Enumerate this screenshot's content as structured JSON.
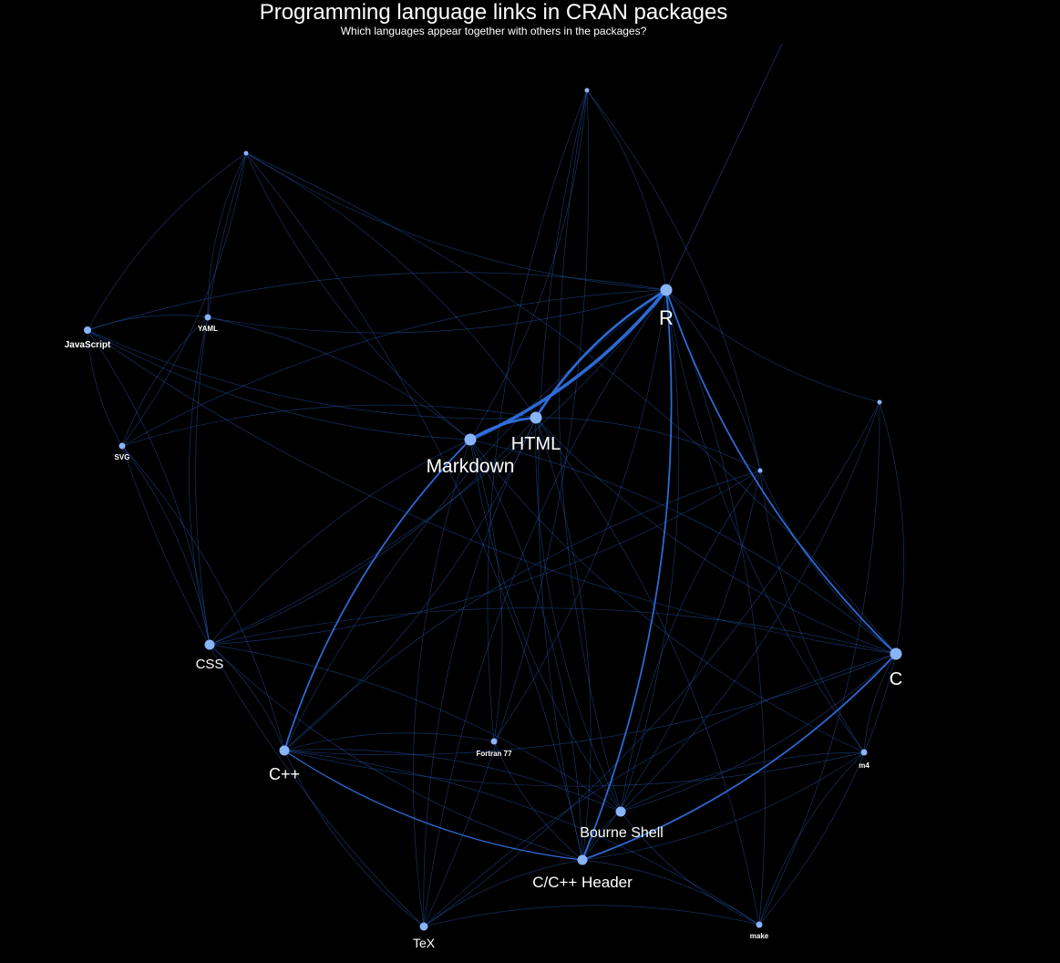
{
  "title": "Programming language links in CRAN packages",
  "subtitle": "Which languages appear together with others in the packages?",
  "colors": {
    "background": "#000000",
    "node": "#8ab4f8",
    "edge": "#2f6fde",
    "label": "#ffffff"
  },
  "nodes": [
    {
      "id": "R",
      "label": "R",
      "degree": "high"
    },
    {
      "id": "HTML",
      "label": "HTML",
      "degree": "high"
    },
    {
      "id": "Markdown",
      "label": "Markdown",
      "degree": "high"
    },
    {
      "id": "C",
      "label": "C",
      "degree": "high"
    },
    {
      "id": "CSS",
      "label": "CSS",
      "degree": "medium"
    },
    {
      "id": "C++",
      "label": "C++",
      "degree": "medium"
    },
    {
      "id": "Bourne Shell",
      "label": "Bourne Shell",
      "degree": "medium"
    },
    {
      "id": "C/C++ Header",
      "label": "C/C++ Header",
      "degree": "medium"
    },
    {
      "id": "TeX",
      "label": "TeX",
      "degree": "low"
    },
    {
      "id": "JavaScript",
      "label": "JavaScript",
      "degree": "low"
    },
    {
      "id": "YAML",
      "label": "YAML",
      "degree": "low"
    },
    {
      "id": "SVG",
      "label": "SVG",
      "degree": "low"
    },
    {
      "id": "Fortran 77",
      "label": "Fortran 77",
      "degree": "low"
    },
    {
      "id": "m4",
      "label": "m4",
      "degree": "low"
    },
    {
      "id": "make",
      "label": "make",
      "degree": "low"
    },
    {
      "id": "u1",
      "label": "",
      "degree": "low"
    },
    {
      "id": "u2",
      "label": "",
      "degree": "low"
    },
    {
      "id": "u3",
      "label": "",
      "degree": "low"
    },
    {
      "id": "u4",
      "label": "",
      "degree": "low"
    }
  ],
  "edges": [
    {
      "source": "R",
      "target": "Markdown",
      "weight": 4
    },
    {
      "source": "R",
      "target": "HTML",
      "weight": 3
    },
    {
      "source": "Markdown",
      "target": "HTML",
      "weight": 3
    },
    {
      "source": "R",
      "target": "C",
      "weight": 2
    },
    {
      "source": "R",
      "target": "C/C++ Header",
      "weight": 2
    },
    {
      "source": "Markdown",
      "target": "C++",
      "weight": 2
    },
    {
      "source": "C",
      "target": "C/C++ Header",
      "weight": 2
    },
    {
      "source": "C++",
      "target": "C/C++ Header",
      "weight": 1.5
    },
    {
      "source": "R",
      "target": "CSS",
      "weight": 1
    },
    {
      "source": "R",
      "target": "C++",
      "weight": 1
    },
    {
      "source": "R",
      "target": "Bourne Shell",
      "weight": 1
    },
    {
      "source": "R",
      "target": "JavaScript",
      "weight": 1
    },
    {
      "source": "R",
      "target": "YAML",
      "weight": 1
    },
    {
      "source": "R",
      "target": "SVG",
      "weight": 1
    },
    {
      "source": "R",
      "target": "Fortran 77",
      "weight": 1
    },
    {
      "source": "R",
      "target": "m4",
      "weight": 1
    },
    {
      "source": "R",
      "target": "make",
      "weight": 1
    },
    {
      "source": "R",
      "target": "TeX",
      "weight": 1
    },
    {
      "source": "R",
      "target": "u1",
      "weight": 1
    },
    {
      "source": "R",
      "target": "u2",
      "weight": 1
    },
    {
      "source": "R",
      "target": "u3",
      "weight": 1
    },
    {
      "source": "R",
      "target": "u4",
      "weight": 1
    },
    {
      "source": "HTML",
      "target": "CSS",
      "weight": 1
    },
    {
      "source": "HTML",
      "target": "C",
      "weight": 1
    },
    {
      "source": "HTML",
      "target": "C++",
      "weight": 1
    },
    {
      "source": "HTML",
      "target": "Bourne Shell",
      "weight": 1
    },
    {
      "source": "HTML",
      "target": "C/C++ Header",
      "weight": 1
    },
    {
      "source": "HTML",
      "target": "TeX",
      "weight": 1
    },
    {
      "source": "HTML",
      "target": "JavaScript",
      "weight": 1
    },
    {
      "source": "HTML",
      "target": "SVG",
      "weight": 1
    },
    {
      "source": "HTML",
      "target": "make",
      "weight": 1
    },
    {
      "source": "HTML",
      "target": "u1",
      "weight": 1
    },
    {
      "source": "HTML",
      "target": "u3",
      "weight": 1
    },
    {
      "source": "Markdown",
      "target": "CSS",
      "weight": 1
    },
    {
      "source": "Markdown",
      "target": "C",
      "weight": 1
    },
    {
      "source": "Markdown",
      "target": "Bourne Shell",
      "weight": 1
    },
    {
      "source": "Markdown",
      "target": "C/C++ Header",
      "weight": 1
    },
    {
      "source": "Markdown",
      "target": "TeX",
      "weight": 1
    },
    {
      "source": "Markdown",
      "target": "JavaScript",
      "weight": 1
    },
    {
      "source": "Markdown",
      "target": "YAML",
      "weight": 1
    },
    {
      "source": "Markdown",
      "target": "u1",
      "weight": 1
    },
    {
      "source": "Markdown",
      "target": "u2",
      "weight": 1
    },
    {
      "source": "Markdown",
      "target": "Fortran 77",
      "weight": 1
    },
    {
      "source": "Markdown",
      "target": "m4",
      "weight": 1
    },
    {
      "source": "C",
      "target": "C++",
      "weight": 1
    },
    {
      "source": "C",
      "target": "CSS",
      "weight": 1
    },
    {
      "source": "C",
      "target": "Bourne Shell",
      "weight": 1
    },
    {
      "source": "C",
      "target": "m4",
      "weight": 1
    },
    {
      "source": "C",
      "target": "make",
      "weight": 1
    },
    {
      "source": "C",
      "target": "TeX",
      "weight": 1
    },
    {
      "source": "C",
      "target": "JavaScript",
      "weight": 1
    },
    {
      "source": "C",
      "target": "u1",
      "weight": 1
    },
    {
      "source": "C",
      "target": "u3",
      "weight": 1
    },
    {
      "source": "C",
      "target": "u4",
      "weight": 1
    },
    {
      "source": "CSS",
      "target": "C++",
      "weight": 1
    },
    {
      "source": "CSS",
      "target": "C/C++ Header",
      "weight": 1
    },
    {
      "source": "CSS",
      "target": "Bourne Shell",
      "weight": 1
    },
    {
      "source": "CSS",
      "target": "JavaScript",
      "weight": 1
    },
    {
      "source": "CSS",
      "target": "YAML",
      "weight": 1
    },
    {
      "source": "CSS",
      "target": "SVG",
      "weight": 1
    },
    {
      "source": "CSS",
      "target": "u1",
      "weight": 1
    },
    {
      "source": "CSS",
      "target": "u3",
      "weight": 1
    },
    {
      "source": "C++",
      "target": "Bourne Shell",
      "weight": 1
    },
    {
      "source": "C++",
      "target": "TeX",
      "weight": 1
    },
    {
      "source": "C++",
      "target": "Fortran 77",
      "weight": 1
    },
    {
      "source": "C++",
      "target": "m4",
      "weight": 1
    },
    {
      "source": "C++",
      "target": "make",
      "weight": 1
    },
    {
      "source": "C++",
      "target": "SVG",
      "weight": 1
    },
    {
      "source": "C++",
      "target": "u3",
      "weight": 1
    },
    {
      "source": "Bourne Shell",
      "target": "C/C++ Header",
      "weight": 1
    },
    {
      "source": "Bourne Shell",
      "target": "m4",
      "weight": 1
    },
    {
      "source": "Bourne Shell",
      "target": "make",
      "weight": 1
    },
    {
      "source": "Bourne Shell",
      "target": "u3",
      "weight": 1
    },
    {
      "source": "Bourne Shell",
      "target": "u4",
      "weight": 1
    },
    {
      "source": "Bourne Shell",
      "target": "u2",
      "weight": 1
    },
    {
      "source": "C/C++ Header",
      "target": "TeX",
      "weight": 1
    },
    {
      "source": "C/C++ Header",
      "target": "make",
      "weight": 1
    },
    {
      "source": "C/C++ Header",
      "target": "m4",
      "weight": 1
    },
    {
      "source": "C/C++ Header",
      "target": "Fortran 77",
      "weight": 1
    },
    {
      "source": "C/C++ Header",
      "target": "u1",
      "weight": 1
    },
    {
      "source": "C/C++ Header",
      "target": "u2",
      "weight": 1
    },
    {
      "source": "C/C++ Header",
      "target": "u3",
      "weight": 1
    },
    {
      "source": "TeX",
      "target": "make",
      "weight": 1
    },
    {
      "source": "TeX",
      "target": "u2",
      "weight": 1
    },
    {
      "source": "TeX",
      "target": "SVG",
      "weight": 1
    },
    {
      "source": "TeX",
      "target": "u4",
      "weight": 1
    },
    {
      "source": "JavaScript",
      "target": "YAML",
      "weight": 1
    },
    {
      "source": "JavaScript",
      "target": "SVG",
      "weight": 1
    },
    {
      "source": "JavaScript",
      "target": "u1",
      "weight": 1
    },
    {
      "source": "YAML",
      "target": "SVG",
      "weight": 1
    },
    {
      "source": "YAML",
      "target": "u1",
      "weight": 1
    },
    {
      "source": "SVG",
      "target": "u1",
      "weight": 1
    },
    {
      "source": "Fortran 77",
      "target": "u2",
      "weight": 1
    },
    {
      "source": "m4",
      "target": "make",
      "weight": 1
    },
    {
      "source": "m4",
      "target": "u3",
      "weight": 1
    },
    {
      "source": "make",
      "target": "u4",
      "weight": 1
    },
    {
      "source": "u2",
      "target": "u3",
      "weight": 1
    }
  ]
}
